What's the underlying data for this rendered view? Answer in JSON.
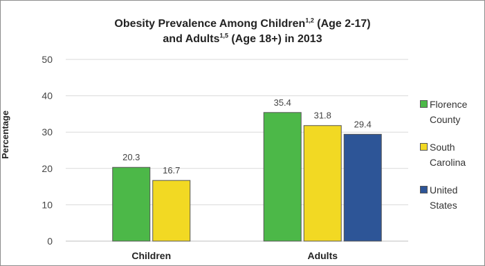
{
  "chart_data": {
    "type": "bar",
    "title_parts": {
      "line1_text": "Obesity Prevalence Among Children",
      "line1_sup": "1,2",
      "line1_rest": " (Age 2-17)",
      "line2_text": "and Adults",
      "line2_sup": "1,5",
      "line2_rest": " (Age 18+) in 2013"
    },
    "ylabel": "Percentage",
    "xlabel": "",
    "categories": [
      "Children",
      "Adults"
    ],
    "ylim": [
      0,
      50
    ],
    "yticks": [
      "0",
      "10",
      "20",
      "30",
      "40",
      "50"
    ],
    "grid": true,
    "legend_position": "right",
    "series": [
      {
        "name": "Florence County",
        "color": "#4cb848",
        "values": [
          20.3,
          35.4
        ],
        "labels": [
          "20.3",
          "35.4"
        ]
      },
      {
        "name": "South Carolina",
        "color": "#f2d923",
        "values": [
          16.7,
          31.8
        ],
        "labels": [
          "16.7",
          "31.8"
        ]
      },
      {
        "name": "United States",
        "color": "#2d5597",
        "values": [
          null,
          29.4
        ],
        "labels": [
          "",
          "29.4"
        ]
      }
    ]
  },
  "legend_lines": [
    [
      "Florence",
      "County"
    ],
    [
      "South",
      "Carolina"
    ],
    [
      "United",
      "States"
    ]
  ]
}
